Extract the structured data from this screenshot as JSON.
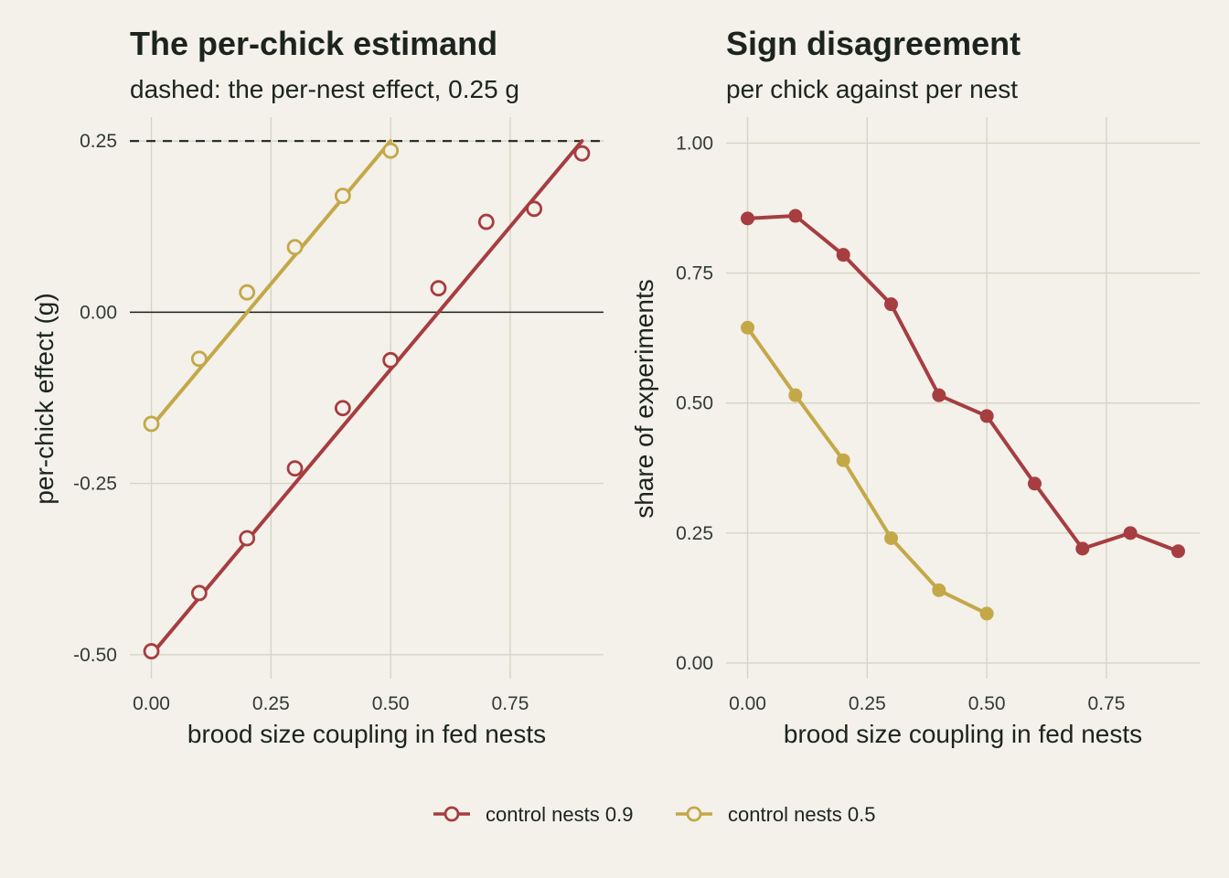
{
  "colors": {
    "background": "#f3f1ea",
    "grid": "#d6d4c4",
    "text": "#1d241f",
    "control_09": "#a63d40",
    "control_05": "#c4a848"
  },
  "legend": [
    {
      "label": "control nests 0.9",
      "color": "#a63d40"
    },
    {
      "label": "control nests 0.5",
      "color": "#c4a848"
    }
  ],
  "chart_data": [
    {
      "type": "line",
      "title": "The per-chick estimand",
      "subtitle": "dashed: the per-nest effect, 0.25 g",
      "xlabel": "brood size coupling in fed nests",
      "ylabel": "per-chick effect (g)",
      "xlim": [
        -0.045,
        0.945
      ],
      "ylim": [
        -0.535,
        0.285
      ],
      "xticks": [
        0,
        0.25,
        0.5,
        0.75
      ],
      "xtick_labels": [
        "0.00",
        "0.25",
        "0.50",
        "0.75"
      ],
      "yticks": [
        -0.5,
        -0.25,
        0,
        0.25
      ],
      "ytick_labels": [
        "-0.50",
        "-0.25",
        "0.00",
        "0.25"
      ],
      "reference_lines": [
        {
          "y": 0.25,
          "style": "dashed"
        },
        {
          "y": 0,
          "style": "solid"
        }
      ],
      "marker": "open-circle",
      "series": [
        {
          "name": "control nests 0.9",
          "color": "#a63d40",
          "points": {
            "x": [
              0,
              0.1,
              0.2,
              0.3,
              0.4,
              0.5,
              0.6,
              0.7,
              0.8,
              0.9
            ],
            "y": [
              -0.495,
              -0.41,
              -0.33,
              -0.228,
              -0.14,
              -0.07,
              0.035,
              0.132,
              0.151,
              0.232
            ]
          },
          "fit": {
            "x": [
              0,
              0.9
            ],
            "y": [
              -0.5,
              0.25
            ]
          }
        },
        {
          "name": "control nests 0.5",
          "color": "#c4a848",
          "points": {
            "x": [
              0,
              0.1,
              0.2,
              0.3,
              0.4,
              0.5
            ],
            "y": [
              -0.163,
              -0.068,
              0.029,
              0.095,
              0.17,
              0.236
            ]
          },
          "fit": {
            "x": [
              0,
              0.5
            ],
            "y": [
              -0.167,
              0.25
            ]
          }
        }
      ]
    },
    {
      "type": "line",
      "title": "Sign disagreement",
      "subtitle": "per chick against per nest",
      "xlabel": "brood size coupling in fed nests",
      "ylabel": "share of experiments",
      "xlim": [
        -0.045,
        0.945
      ],
      "ylim": [
        -0.03,
        1.05
      ],
      "xticks": [
        0,
        0.25,
        0.5,
        0.75
      ],
      "xtick_labels": [
        "0.00",
        "0.25",
        "0.50",
        "0.75"
      ],
      "yticks": [
        0,
        0.25,
        0.5,
        0.75,
        1
      ],
      "ytick_labels": [
        "0.00",
        "0.25",
        "0.50",
        "0.75",
        "1.00"
      ],
      "marker": "filled-circle",
      "series": [
        {
          "name": "control nests 0.9",
          "color": "#a63d40",
          "points": {
            "x": [
              0,
              0.1,
              0.2,
              0.3,
              0.4,
              0.5,
              0.6,
              0.7,
              0.8,
              0.9
            ],
            "y": [
              0.855,
              0.86,
              0.785,
              0.69,
              0.515,
              0.475,
              0.345,
              0.22,
              0.25,
              0.215
            ]
          }
        },
        {
          "name": "control nests 0.5",
          "color": "#c4a848",
          "points": {
            "x": [
              0,
              0.1,
              0.2,
              0.3,
              0.4,
              0.5
            ],
            "y": [
              0.645,
              0.515,
              0.39,
              0.24,
              0.14,
              0.095
            ]
          }
        }
      ]
    }
  ]
}
